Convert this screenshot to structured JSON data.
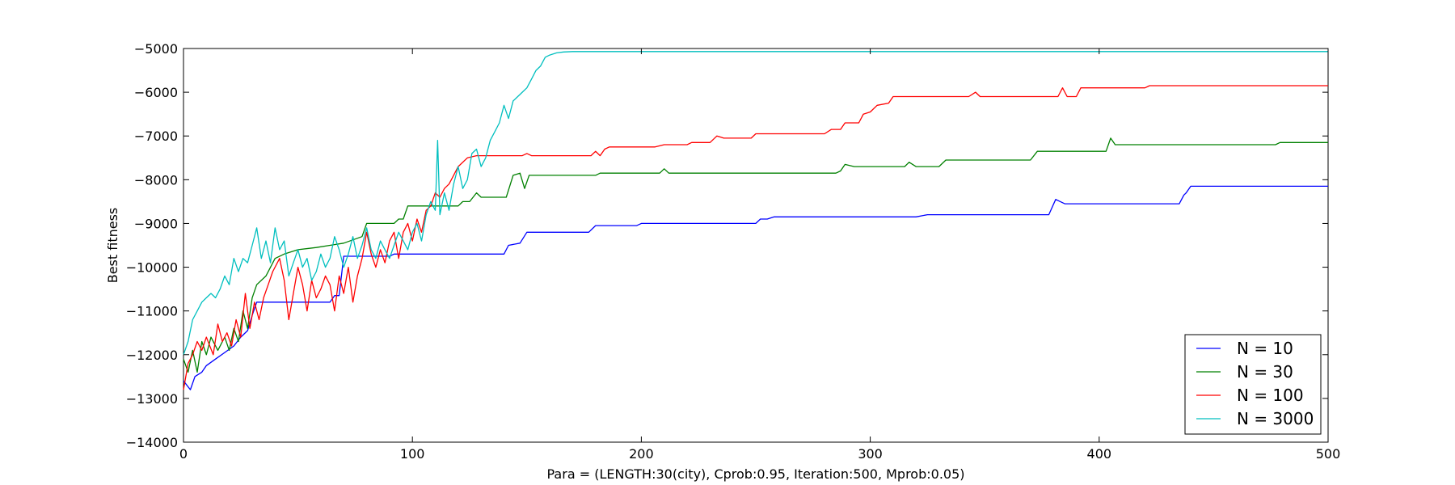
{
  "chart_data": {
    "type": "line",
    "title": "",
    "xlabel": "Para = (LENGTH:30(city), Cprob:0.95, Iteration:500, Mprob:0.05)",
    "ylabel": "Best fitness",
    "xlim": [
      0,
      500
    ],
    "ylim": [
      -14000,
      -5000
    ],
    "x_ticks": [
      0,
      100,
      200,
      300,
      400,
      500
    ],
    "y_ticks": [
      -14000,
      -13000,
      -12000,
      -11000,
      -10000,
      -9000,
      -8000,
      -7000,
      -6000,
      -5000
    ],
    "x_tick_labels": [
      "0",
      "100",
      "200",
      "300",
      "400",
      "500"
    ],
    "y_tick_labels": [
      "−14000",
      "−13000",
      "−12000",
      "−11000",
      "−10000",
      "−9000",
      "−8000",
      "−7000",
      "−6000",
      "−5000"
    ],
    "grid": false,
    "legend_position": "bottom-right",
    "series": [
      {
        "name": "N = 10",
        "color": "#0000ff",
        "points": [
          [
            0,
            -12600
          ],
          [
            3,
            -12800
          ],
          [
            5,
            -12500
          ],
          [
            8,
            -12400
          ],
          [
            10,
            -12250
          ],
          [
            14,
            -12100
          ],
          [
            18,
            -11950
          ],
          [
            22,
            -11800
          ],
          [
            25,
            -11600
          ],
          [
            28,
            -11450
          ],
          [
            30,
            -11100
          ],
          [
            32,
            -10800
          ],
          [
            64,
            -10800
          ],
          [
            66,
            -10650
          ],
          [
            68,
            -10650
          ],
          [
            70,
            -9750
          ],
          [
            90,
            -9750
          ],
          [
            92,
            -9700
          ],
          [
            140,
            -9700
          ],
          [
            142,
            -9500
          ],
          [
            147,
            -9450
          ],
          [
            150,
            -9200
          ],
          [
            177,
            -9200
          ],
          [
            180,
            -9050
          ],
          [
            198,
            -9050
          ],
          [
            200,
            -9000
          ],
          [
            250,
            -9000
          ],
          [
            252,
            -8900
          ],
          [
            255,
            -8900
          ],
          [
            258,
            -8850
          ],
          [
            320,
            -8850
          ],
          [
            325,
            -8800
          ],
          [
            378,
            -8800
          ],
          [
            381,
            -8450
          ],
          [
            383,
            -8500
          ],
          [
            385,
            -8550
          ],
          [
            435,
            -8550
          ],
          [
            437,
            -8350
          ],
          [
            438,
            -8300
          ],
          [
            440,
            -8150
          ],
          [
            500,
            -8150
          ]
        ]
      },
      {
        "name": "N = 30",
        "color": "#008000",
        "points": [
          [
            0,
            -12100
          ],
          [
            2,
            -12400
          ],
          [
            4,
            -11900
          ],
          [
            6,
            -12400
          ],
          [
            8,
            -11700
          ],
          [
            10,
            -12000
          ],
          [
            12,
            -11600
          ],
          [
            15,
            -11900
          ],
          [
            18,
            -11600
          ],
          [
            20,
            -11900
          ],
          [
            22,
            -11400
          ],
          [
            24,
            -11700
          ],
          [
            26,
            -11000
          ],
          [
            28,
            -11400
          ],
          [
            30,
            -10700
          ],
          [
            32,
            -10400
          ],
          [
            36,
            -10200
          ],
          [
            40,
            -9800
          ],
          [
            44,
            -9700
          ],
          [
            50,
            -9600
          ],
          [
            58,
            -9550
          ],
          [
            64,
            -9500
          ],
          [
            70,
            -9450
          ],
          [
            78,
            -9300
          ],
          [
            80,
            -9000
          ],
          [
            92,
            -9000
          ],
          [
            94,
            -8900
          ],
          [
            96,
            -8900
          ],
          [
            98,
            -8600
          ],
          [
            120,
            -8600
          ],
          [
            122,
            -8500
          ],
          [
            125,
            -8500
          ],
          [
            128,
            -8300
          ],
          [
            130,
            -8400
          ],
          [
            141,
            -8400
          ],
          [
            144,
            -7900
          ],
          [
            147,
            -7850
          ],
          [
            149,
            -8200
          ],
          [
            151,
            -7900
          ],
          [
            180,
            -7900
          ],
          [
            182,
            -7850
          ],
          [
            208,
            -7850
          ],
          [
            210,
            -7750
          ],
          [
            212,
            -7850
          ],
          [
            285,
            -7850
          ],
          [
            287,
            -7800
          ],
          [
            289,
            -7650
          ],
          [
            293,
            -7700
          ],
          [
            315,
            -7700
          ],
          [
            317,
            -7600
          ],
          [
            320,
            -7700
          ],
          [
            330,
            -7700
          ],
          [
            333,
            -7550
          ],
          [
            370,
            -7550
          ],
          [
            373,
            -7350
          ],
          [
            403,
            -7350
          ],
          [
            405,
            -7050
          ],
          [
            407,
            -7200
          ],
          [
            477,
            -7200
          ],
          [
            479,
            -7150
          ],
          [
            500,
            -7150
          ]
        ]
      },
      {
        "name": "N = 100",
        "color": "#ff0000",
        "points": [
          [
            0,
            -12800
          ],
          [
            2,
            -12200
          ],
          [
            4,
            -12000
          ],
          [
            6,
            -11700
          ],
          [
            8,
            -11900
          ],
          [
            10,
            -11600
          ],
          [
            13,
            -12000
          ],
          [
            15,
            -11300
          ],
          [
            17,
            -11700
          ],
          [
            19,
            -11500
          ],
          [
            21,
            -11800
          ],
          [
            23,
            -11200
          ],
          [
            25,
            -11600
          ],
          [
            27,
            -10600
          ],
          [
            29,
            -11400
          ],
          [
            31,
            -10800
          ],
          [
            33,
            -11200
          ],
          [
            35,
            -10700
          ],
          [
            37,
            -10400
          ],
          [
            39,
            -10100
          ],
          [
            42,
            -9800
          ],
          [
            44,
            -10300
          ],
          [
            46,
            -11200
          ],
          [
            48,
            -10600
          ],
          [
            50,
            -10000
          ],
          [
            52,
            -10400
          ],
          [
            54,
            -11000
          ],
          [
            56,
            -10300
          ],
          [
            58,
            -10700
          ],
          [
            60,
            -10500
          ],
          [
            62,
            -10200
          ],
          [
            64,
            -10400
          ],
          [
            66,
            -11000
          ],
          [
            68,
            -10200
          ],
          [
            70,
            -10600
          ],
          [
            72,
            -10000
          ],
          [
            74,
            -10800
          ],
          [
            76,
            -10200
          ],
          [
            78,
            -9800
          ],
          [
            80,
            -9200
          ],
          [
            82,
            -9700
          ],
          [
            84,
            -10000
          ],
          [
            86,
            -9600
          ],
          [
            88,
            -9900
          ],
          [
            90,
            -9400
          ],
          [
            92,
            -9200
          ],
          [
            94,
            -9800
          ],
          [
            96,
            -9200
          ],
          [
            98,
            -9000
          ],
          [
            100,
            -9400
          ],
          [
            102,
            -8900
          ],
          [
            104,
            -9200
          ],
          [
            106,
            -8700
          ],
          [
            108,
            -8600
          ],
          [
            110,
            -8300
          ],
          [
            112,
            -8400
          ],
          [
            114,
            -8200
          ],
          [
            116,
            -8100
          ],
          [
            118,
            -7900
          ],
          [
            120,
            -7700
          ],
          [
            124,
            -7500
          ],
          [
            128,
            -7450
          ],
          [
            148,
            -7450
          ],
          [
            150,
            -7400
          ],
          [
            152,
            -7450
          ],
          [
            178,
            -7450
          ],
          [
            180,
            -7350
          ],
          [
            182,
            -7450
          ],
          [
            184,
            -7300
          ],
          [
            186,
            -7250
          ],
          [
            206,
            -7250
          ],
          [
            210,
            -7200
          ],
          [
            220,
            -7200
          ],
          [
            222,
            -7150
          ],
          [
            230,
            -7150
          ],
          [
            233,
            -7000
          ],
          [
            236,
            -7050
          ],
          [
            248,
            -7050
          ],
          [
            250,
            -6950
          ],
          [
            280,
            -6950
          ],
          [
            283,
            -6850
          ],
          [
            287,
            -6850
          ],
          [
            289,
            -6700
          ],
          [
            295,
            -6700
          ],
          [
            297,
            -6500
          ],
          [
            300,
            -6450
          ],
          [
            303,
            -6300
          ],
          [
            308,
            -6250
          ],
          [
            310,
            -6100
          ],
          [
            343,
            -6100
          ],
          [
            346,
            -6000
          ],
          [
            348,
            -6100
          ],
          [
            382,
            -6100
          ],
          [
            384,
            -5900
          ],
          [
            386,
            -6100
          ],
          [
            390,
            -6100
          ],
          [
            392,
            -5900
          ],
          [
            420,
            -5900
          ],
          [
            422,
            -5850
          ],
          [
            500,
            -5850
          ]
        ]
      },
      {
        "name": "N = 3000",
        "color": "#00bfbf",
        "points": [
          [
            0,
            -12000
          ],
          [
            2,
            -11700
          ],
          [
            4,
            -11200
          ],
          [
            6,
            -11000
          ],
          [
            8,
            -10800
          ],
          [
            10,
            -10700
          ],
          [
            12,
            -10600
          ],
          [
            14,
            -10700
          ],
          [
            16,
            -10500
          ],
          [
            18,
            -10200
          ],
          [
            20,
            -10400
          ],
          [
            22,
            -9800
          ],
          [
            24,
            -10100
          ],
          [
            26,
            -9800
          ],
          [
            28,
            -9900
          ],
          [
            30,
            -9500
          ],
          [
            32,
            -9100
          ],
          [
            34,
            -9800
          ],
          [
            36,
            -9400
          ],
          [
            38,
            -9900
          ],
          [
            40,
            -9100
          ],
          [
            42,
            -9600
          ],
          [
            44,
            -9400
          ],
          [
            46,
            -10200
          ],
          [
            48,
            -9900
          ],
          [
            50,
            -9600
          ],
          [
            52,
            -10000
          ],
          [
            54,
            -9800
          ],
          [
            56,
            -10300
          ],
          [
            58,
            -10100
          ],
          [
            60,
            -9700
          ],
          [
            62,
            -10000
          ],
          [
            64,
            -9800
          ],
          [
            66,
            -9300
          ],
          [
            68,
            -9600
          ],
          [
            70,
            -10000
          ],
          [
            72,
            -9700
          ],
          [
            74,
            -9300
          ],
          [
            76,
            -9800
          ],
          [
            78,
            -9500
          ],
          [
            80,
            -9100
          ],
          [
            82,
            -9600
          ],
          [
            84,
            -9800
          ],
          [
            86,
            -9400
          ],
          [
            88,
            -9600
          ],
          [
            90,
            -9800
          ],
          [
            92,
            -9500
          ],
          [
            94,
            -9200
          ],
          [
            96,
            -9400
          ],
          [
            98,
            -9600
          ],
          [
            100,
            -9200
          ],
          [
            102,
            -9000
          ],
          [
            104,
            -9400
          ],
          [
            106,
            -8800
          ],
          [
            108,
            -8500
          ],
          [
            110,
            -8700
          ],
          [
            111,
            -7100
          ],
          [
            112,
            -8800
          ],
          [
            114,
            -8300
          ],
          [
            116,
            -8700
          ],
          [
            118,
            -8100
          ],
          [
            120,
            -7700
          ],
          [
            122,
            -8200
          ],
          [
            124,
            -8000
          ],
          [
            126,
            -7400
          ],
          [
            128,
            -7300
          ],
          [
            130,
            -7700
          ],
          [
            132,
            -7500
          ],
          [
            134,
            -7100
          ],
          [
            136,
            -6900
          ],
          [
            138,
            -6700
          ],
          [
            140,
            -6300
          ],
          [
            142,
            -6600
          ],
          [
            144,
            -6200
          ],
          [
            146,
            -6100
          ],
          [
            148,
            -6000
          ],
          [
            150,
            -5900
          ],
          [
            152,
            -5700
          ],
          [
            154,
            -5500
          ],
          [
            156,
            -5400
          ],
          [
            158,
            -5200
          ],
          [
            160,
            -5150
          ],
          [
            163,
            -5100
          ],
          [
            166,
            -5080
          ],
          [
            170,
            -5070
          ],
          [
            500,
            -5070
          ]
        ]
      }
    ]
  }
}
